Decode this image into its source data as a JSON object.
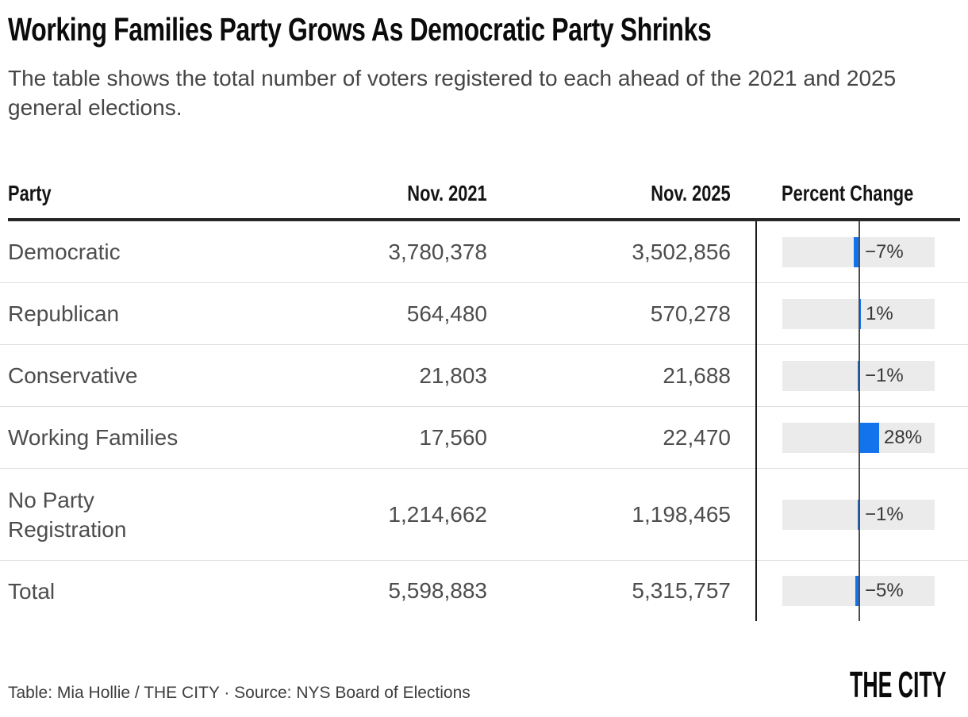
{
  "header": {
    "title": "Working Families Party Grows As Democratic Party Shrinks",
    "subtitle": "The table shows the total number of voters registered to each ahead of the 2021 and 2025 general elections."
  },
  "table": {
    "columns": [
      "Party",
      "Nov. 2021",
      "Nov. 2025",
      "Percent Change"
    ],
    "rows": [
      {
        "party": "Democratic",
        "nov2021": "3,780,378",
        "nov2025": "3,502,856",
        "pct": -7,
        "pct_label": "−7%"
      },
      {
        "party": "Republican",
        "nov2021": "564,480",
        "nov2025": "570,278",
        "pct": 1,
        "pct_label": "1%"
      },
      {
        "party": "Conservative",
        "nov2021": "21,803",
        "nov2025": "21,688",
        "pct": -1,
        "pct_label": "−1%"
      },
      {
        "party": "Working Families",
        "nov2021": "17,560",
        "nov2025": "22,470",
        "pct": 28,
        "pct_label": "28%"
      },
      {
        "party": "No Party Registration",
        "nov2021": "1,214,662",
        "nov2025": "1,198,465",
        "pct": -1,
        "pct_label": "−1%"
      },
      {
        "party": "Total",
        "nov2021": "5,598,883",
        "nov2025": "5,315,757",
        "pct": -5,
        "pct_label": "−5%"
      }
    ]
  },
  "chart_data": {
    "type": "table",
    "title": "Working Families Party Grows As Democratic Party Shrinks",
    "subtitle": "The table shows the total number of voters registered to each ahead of the 2021 and 2025 general elections.",
    "columns": [
      "Party",
      "Nov. 2021",
      "Nov. 2025",
      "Percent Change"
    ],
    "categories": [
      "Democratic",
      "Republican",
      "Conservative",
      "Working Families",
      "No Party Registration",
      "Total"
    ],
    "series": [
      {
        "name": "Nov. 2021",
        "values": [
          3780378,
          564480,
          21803,
          17560,
          1214662,
          5598883
        ]
      },
      {
        "name": "Nov. 2025",
        "values": [
          3502856,
          570278,
          21688,
          22470,
          1198465,
          5315757
        ]
      },
      {
        "name": "Percent Change (%)",
        "values": [
          -7,
          1,
          -1,
          28,
          -1,
          -5
        ]
      }
    ],
    "percent_change_display": [
      "−7%",
      "1%",
      "−1%",
      "28%",
      "−1%",
      "−5%"
    ],
    "bar_axis": "zero baseline vertical line inside gray track, negative bars extend left, positive bars extend right",
    "bar_color": "#1373ec",
    "track_color": "#ebebeb"
  },
  "colors": {
    "accent_blue": "#1373ec",
    "bar_track": "#ebebeb",
    "axis_line": "#4d4d4d",
    "separator_line": "#1b1b1b",
    "thick_rule": "#262626",
    "row_divider": "#dedede"
  },
  "footer": {
    "credit": "Table: Mia Hollie / THE CITY · Source: NYS Board of Elections",
    "logo": "THE CITY"
  }
}
